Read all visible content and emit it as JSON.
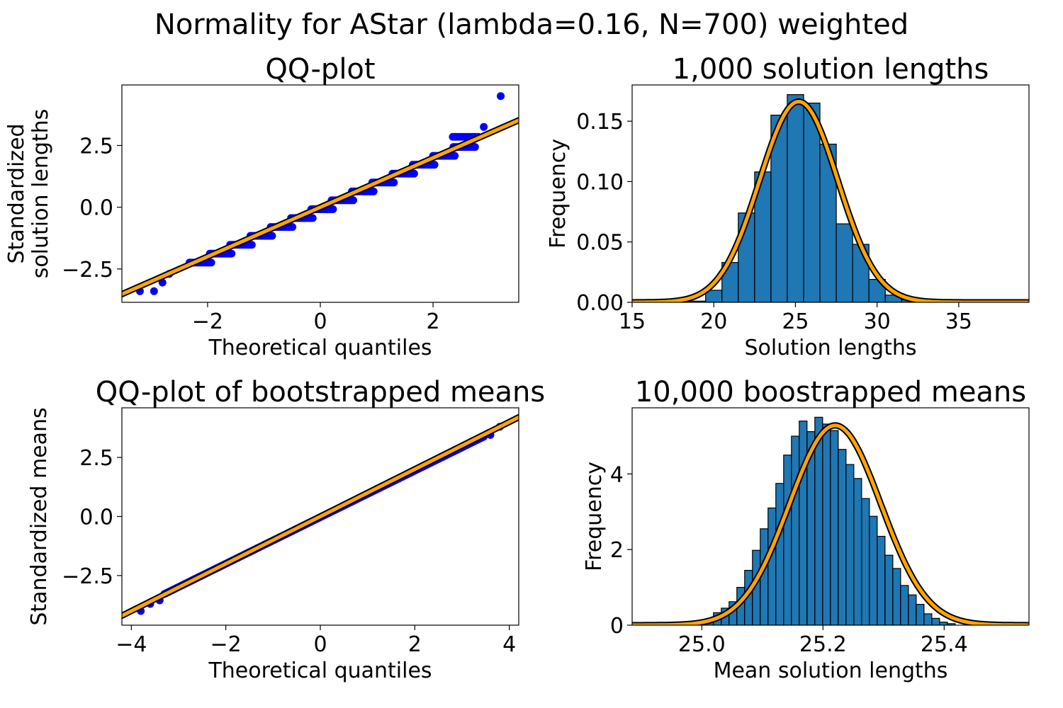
{
  "figure": {
    "title": "Normality for AStar (lambda=0.16, N=700) weighted"
  },
  "colors": {
    "points": "#0000ff",
    "fit_line": "#ffa500",
    "fit_outline": "#000000",
    "bars": "#1f77b4",
    "bar_edge": "#000000"
  },
  "chart_data": [
    {
      "id": "qq1",
      "type": "scatter",
      "title": "QQ-plot",
      "xlabel": "Theoretical quantiles",
      "ylabel": "Standardized\nsolution lengths",
      "xlim": [
        -3.52,
        3.52
      ],
      "ylim": [
        -3.85,
        4.95
      ],
      "xticks": [
        -2,
        0,
        2
      ],
      "xticklabels": [
        "−2",
        "0",
        "2"
      ],
      "yticks": [
        -2.5,
        0.0,
        2.5
      ],
      "yticklabels": [
        "−2.5",
        "0.0",
        "2.5"
      ],
      "reference_line": {
        "slope": 1,
        "intercept": 0
      },
      "n_points": 1000,
      "discrete_step": 0.36,
      "points": [
        [
          -3.2,
          -3.4
        ],
        [
          -2.95,
          -3.4
        ],
        [
          -2.8,
          -3.05
        ],
        [
          -2.68,
          -2.7
        ],
        [
          2.9,
          3.25
        ],
        [
          3.2,
          4.5
        ]
      ],
      "grid": false
    },
    {
      "id": "hist1",
      "type": "bar",
      "title": "1,000 solution lengths",
      "xlabel": "Solution lengths",
      "ylabel": "Frequency",
      "xlim": [
        15.0,
        39.3
      ],
      "ylim": [
        0.0,
        0.18
      ],
      "xticks": [
        15,
        20,
        25,
        30,
        35
      ],
      "xticklabels": [
        "15",
        "20",
        "25",
        "30",
        "35"
      ],
      "yticks": [
        0.0,
        0.05,
        0.1,
        0.15
      ],
      "yticklabels": [
        "0.00",
        "0.05",
        "0.10",
        "0.15"
      ],
      "bin_edges": [
        18.5,
        19.5,
        20.5,
        21.5,
        22.5,
        23.5,
        24.5,
        25.5,
        26.5,
        27.5,
        28.5,
        29.5,
        30.5,
        31.5,
        32.5
      ],
      "values": [
        0.001,
        0.01,
        0.033,
        0.074,
        0.108,
        0.155,
        0.172,
        0.165,
        0.131,
        0.065,
        0.048,
        0.019,
        0.006,
        0.002
      ],
      "normal_fit": {
        "mean": 25.2,
        "sd": 2.4
      },
      "grid": false
    },
    {
      "id": "qq2",
      "type": "scatter",
      "title": "QQ-plot of bootstrapped means",
      "xlabel": "Theoretical quantiles",
      "ylabel": "Standardized means",
      "xlim": [
        -4.2,
        4.2
      ],
      "ylim": [
        -4.6,
        4.6
      ],
      "xticks": [
        -4,
        -2,
        0,
        2,
        4
      ],
      "xticklabels": [
        "−4",
        "−2",
        "0",
        "2",
        "4"
      ],
      "yticks": [
        -2.5,
        0.0,
        2.5
      ],
      "yticklabels": [
        "−2.5",
        "0.0",
        "2.5"
      ],
      "reference_line": {
        "slope": 1,
        "intercept": 0
      },
      "n_points": 10000,
      "points": [
        [
          -3.8,
          -4.0
        ],
        [
          -3.6,
          -3.7
        ],
        [
          -3.4,
          -3.55
        ],
        [
          3.6,
          3.45
        ],
        [
          3.8,
          3.8
        ]
      ],
      "grid": false
    },
    {
      "id": "hist2",
      "type": "bar",
      "title": "10,000 boostrapped means",
      "xlabel": "Mean solution lengths",
      "ylabel": "Frequency",
      "xlim": [
        24.885,
        25.54
      ],
      "ylim": [
        0.0,
        5.75
      ],
      "xticks": [
        25.0,
        25.2,
        25.4
      ],
      "xticklabels": [
        "25.0",
        "25.2",
        "25.4"
      ],
      "yticks": [
        0,
        2,
        4
      ],
      "yticklabels": [
        "0",
        "2",
        "4"
      ],
      "bin_start": 24.9935,
      "bin_width": 0.01287,
      "values": [
        0.05,
        0.12,
        0.33,
        0.45,
        0.62,
        1.0,
        1.45,
        1.98,
        2.55,
        3.1,
        3.75,
        4.5,
        5.0,
        5.4,
        5.12,
        5.5,
        5.32,
        5.15,
        4.65,
        4.25,
        3.88,
        3.35,
        2.88,
        2.35,
        1.85,
        1.5,
        1.05,
        0.8,
        0.55,
        0.3,
        0.18,
        0.08,
        0.04
      ],
      "normal_fit": {
        "mean": 25.22,
        "sd": 0.0755
      },
      "grid": false
    }
  ]
}
